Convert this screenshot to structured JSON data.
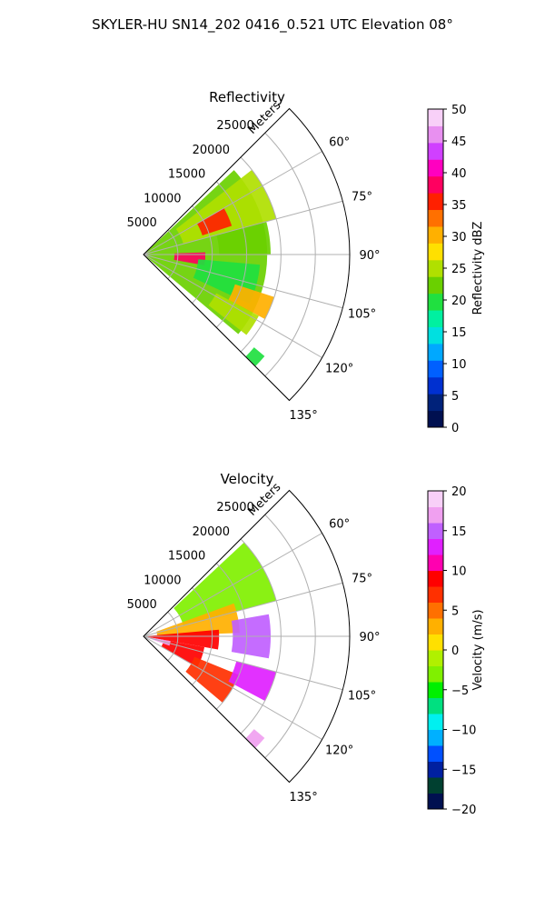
{
  "figure": {
    "title": "SKYLER-HU  SN14_202  0416_0.521 UTC Elevation 08°"
  },
  "chart_data": [
    {
      "type": "heatmap",
      "subtype": "polar-sector PPI radar scan",
      "title": "Reflectivity",
      "radial_label": "Meters",
      "range_ticks": [
        5000,
        10000,
        15000,
        20000,
        25000
      ],
      "range_lim": [
        0,
        30000
      ],
      "azimuth_ticks": [
        "60°",
        "75°",
        "90°",
        "105°",
        "120°",
        "135°"
      ],
      "azimuth_tick_values": [
        60,
        75,
        90,
        105,
        120,
        135
      ],
      "azimuth_lim": [
        45,
        135
      ],
      "grid": true,
      "colorbar": {
        "label": "Reflectivity dBZ",
        "min": 0,
        "max": 50,
        "ticks": [
          0,
          5,
          10,
          15,
          20,
          25,
          30,
          35,
          40,
          45,
          50
        ],
        "colors": [
          "#001050",
          "#00227a",
          "#0030d0",
          "#0060ff",
          "#00a8ff",
          "#00e0e0",
          "#00f0a0",
          "#20e040",
          "#6ad000",
          "#b0e000",
          "#ffe000",
          "#ffb000",
          "#ff7000",
          "#ff2000",
          "#ff0060",
          "#ff00c0",
          "#d040ff",
          "#e890f0",
          "#f8d0f8"
        ]
      },
      "echo_regions": [
        {
          "az_from": 47,
          "az_to": 130,
          "r_from": 0,
          "r_to": 18000,
          "value": 22
        },
        {
          "az_from": 52,
          "az_to": 75,
          "r_from": 6000,
          "r_to": 20000,
          "value": 25
        },
        {
          "az_from": 60,
          "az_to": 72,
          "r_from": 9000,
          "r_to": 13500,
          "value": 35
        },
        {
          "az_from": 75,
          "az_to": 90,
          "r_from": 11000,
          "r_to": 18500,
          "value": 23
        },
        {
          "az_from": 88,
          "az_to": 100,
          "r_from": 4500,
          "r_to": 9000,
          "value": 38
        },
        {
          "az_from": 95,
          "az_to": 115,
          "r_from": 8000,
          "r_to": 17000,
          "value": 21
        },
        {
          "az_from": 108,
          "az_to": 118,
          "r_from": 14000,
          "r_to": 20000,
          "value": 30
        },
        {
          "az_from": 118,
          "az_to": 128,
          "r_from": 12000,
          "r_to": 19000,
          "value": 24
        },
        {
          "az_from": 130,
          "az_to": 135,
          "r_from": 21000,
          "r_to": 23000,
          "value": 20
        }
      ]
    },
    {
      "type": "heatmap",
      "subtype": "polar-sector PPI radar scan",
      "title": "Velocity",
      "radial_label": "Meters",
      "range_ticks": [
        5000,
        10000,
        15000,
        20000,
        25000
      ],
      "range_lim": [
        0,
        30000
      ],
      "azimuth_ticks": [
        "60°",
        "75°",
        "90°",
        "105°",
        "120°",
        "135°"
      ],
      "azimuth_tick_values": [
        60,
        75,
        90,
        105,
        120,
        135
      ],
      "azimuth_lim": [
        45,
        135
      ],
      "grid": true,
      "colorbar": {
        "label": "Velocity (m/s)",
        "min": -20,
        "max": 20,
        "ticks": [
          -20,
          -15,
          -10,
          -5,
          0,
          5,
          10,
          15,
          20
        ],
        "colors": [
          "#001050",
          "#004030",
          "#0020a0",
          "#0050ff",
          "#00b0ff",
          "#00f0f0",
          "#00e080",
          "#00f000",
          "#80f000",
          "#b0f000",
          "#ffe000",
          "#ffb000",
          "#ff7000",
          "#ff3000",
          "#ff0000",
          "#ff00b0",
          "#e020ff",
          "#c060ff",
          "#f0a0f0",
          "#f8d0f8"
        ]
      },
      "echo_regions": [
        {
          "az_from": 47,
          "az_to": 75,
          "r_from": 6000,
          "r_to": 20000,
          "value": -3
        },
        {
          "az_from": 70,
          "az_to": 88,
          "r_from": 2000,
          "r_to": 14000,
          "value": 3
        },
        {
          "az_from": 85,
          "az_to": 100,
          "r_from": 0,
          "r_to": 11000,
          "value": 9
        },
        {
          "az_from": 80,
          "az_to": 100,
          "r_from": 13000,
          "r_to": 18500,
          "value": 14
        },
        {
          "az_from": 100,
          "az_to": 120,
          "r_from": 3000,
          "r_to": 9000,
          "value": 8
        },
        {
          "az_from": 100,
          "az_to": 110,
          "r_from": 0,
          "r_to": 4000,
          "value": 17
        },
        {
          "az_from": 112,
          "az_to": 130,
          "r_from": 8000,
          "r_to": 15000,
          "value": 6
        },
        {
          "az_from": 105,
          "az_to": 118,
          "r_from": 14000,
          "r_to": 20000,
          "value": 13
        },
        {
          "az_from": 130,
          "az_to": 135,
          "r_from": 21000,
          "r_to": 23000,
          "value": 16
        }
      ]
    }
  ]
}
